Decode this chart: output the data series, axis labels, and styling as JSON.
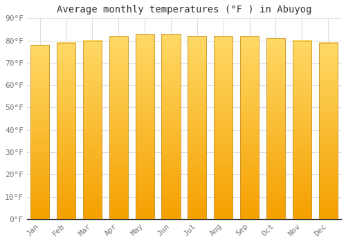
{
  "title": "Average monthly temperatures (°F ) in Abuyog",
  "months": [
    "Jan",
    "Feb",
    "Mar",
    "Apr",
    "May",
    "Jun",
    "Jul",
    "Aug",
    "Sep",
    "Oct",
    "Nov",
    "Dec"
  ],
  "values": [
    78,
    79,
    80,
    82,
    83,
    83,
    82,
    82,
    82,
    81,
    80,
    79
  ],
  "bar_color_light": "#FFD966",
  "bar_color_dark": "#F5A000",
  "bar_edge_color": "#C8922A",
  "background_color": "#FFFFFF",
  "grid_color": "#DDDDDD",
  "title_fontsize": 10,
  "tick_fontsize": 8,
  "ylabel_values": [
    0,
    10,
    20,
    30,
    40,
    50,
    60,
    70,
    80,
    90
  ],
  "ylim": [
    0,
    90
  ],
  "font_family": "monospace"
}
